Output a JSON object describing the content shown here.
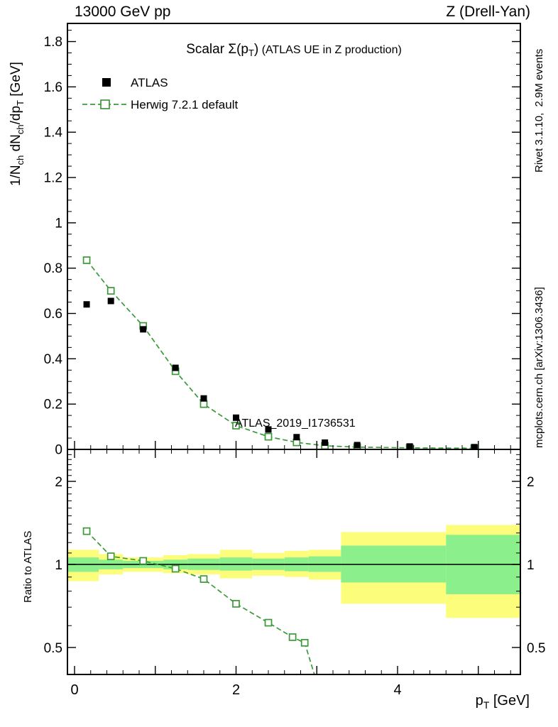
{
  "header": {
    "left": "13000 GeV pp",
    "right": "Z (Drell-Yan)"
  },
  "side_notes": {
    "top": "Rivet 3.1.10,  2.9M events",
    "bottom": "mcplots.cern.ch [arXiv:1306.3436]"
  },
  "watermark": "ATLAS_2019_I1736531",
  "title": {
    "p1": "Scalar Σ(p",
    "sub": "T",
    "p2": ")",
    "p3": " (ATLAS UE in Z production)"
  },
  "labels": {
    "y_main": {
      "p1": "1/N",
      "s1": "ch",
      "p2": " dN",
      "s2": "ch",
      "p3": "/dp",
      "s3": "T",
      "p4": " [GeV]"
    },
    "y_ratio": "Ratio to ATLAS",
    "x": {
      "p1": "p",
      "s1": "T",
      "p2": " [GeV]"
    }
  },
  "legend": {
    "items": [
      {
        "label": "ATLAS",
        "marker": "filled-square",
        "color": "#000000"
      },
      {
        "label": "Herwig 7.2.1 default",
        "marker": "open-square-dashed-line",
        "color": "#3c9939"
      }
    ]
  },
  "colors": {
    "herwig_green": "#3c9939",
    "atlas_black": "#000000",
    "band_yellow": "#fdfd7c",
    "band_green": "#8bf08b",
    "gray_text": "#8c8c8c",
    "watermark_gray": "#b8b8b8"
  },
  "axes": {
    "main": {
      "ylim": [
        0,
        1.88
      ],
      "xlim": [
        -0.09,
        5.52
      ],
      "yticks": [
        {
          "v": 0,
          "t": "0"
        },
        {
          "v": 0.2,
          "t": "0.2"
        },
        {
          "v": 0.4,
          "t": "0.4"
        },
        {
          "v": 0.6,
          "t": "0.6"
        },
        {
          "v": 0.8,
          "t": "0.8"
        },
        {
          "v": 1,
          "t": "1"
        },
        {
          "v": 1.2,
          "t": "1.2"
        },
        {
          "v": 1.4,
          "t": "1.4"
        },
        {
          "v": 1.6,
          "t": "1.6"
        },
        {
          "v": 1.8,
          "t": "1.8"
        }
      ],
      "xticks_major": [
        0,
        1,
        2,
        3,
        4,
        5
      ],
      "xminor_step": 0.2,
      "yminor_step": 0.05
    },
    "ratio": {
      "yscale": "log",
      "ylim": [
        0.4,
        2.61
      ],
      "yticks": [
        {
          "v": 0.5,
          "t": "0.5"
        },
        {
          "v": 1,
          "t": "1"
        },
        {
          "v": 2,
          "t": "2"
        }
      ],
      "yminor": [
        0.4,
        0.6,
        0.7,
        0.8,
        0.9,
        1.1,
        1.2,
        1.3,
        1.4,
        1.5,
        1.6,
        1.7,
        1.8,
        1.9,
        2.1,
        2.2,
        2.3,
        2.4,
        2.5,
        2.6
      ],
      "xtick_labels": [
        {
          "v": 0,
          "t": "0"
        },
        {
          "v": 2,
          "t": "2"
        },
        {
          "v": 4,
          "t": "4"
        }
      ]
    }
  },
  "chart_data": [
    {
      "type": "scatter",
      "title": "Scalar Σ(pT) (ATLAS UE in Z production)",
      "xlabel": "pT [GeV]",
      "ylabel": "1/Nch dNch/dpT [GeV]",
      "xlim": [
        -0.09,
        5.52
      ],
      "ylim": [
        0,
        1.88
      ],
      "legend_position": "upper-left-inside",
      "grid": false,
      "x": [
        0.15,
        0.45,
        0.85,
        1.25,
        1.6,
        2.0,
        2.4,
        2.75,
        3.1,
        3.5,
        4.15,
        4.95
      ],
      "series": [
        {
          "name": "ATLAS",
          "marker": "filled-square",
          "color": "#000000",
          "values": [
            0.64,
            0.655,
            0.53,
            0.36,
            0.225,
            0.14,
            0.088,
            0.054,
            0.03,
            0.019,
            0.013,
            0.01
          ]
        },
        {
          "name": "Herwig 7.2.1 default",
          "marker": "open-square",
          "line": "dashed",
          "color": "#3c9939",
          "values": [
            0.835,
            0.7,
            0.545,
            0.345,
            0.2,
            0.105,
            0.056,
            0.031,
            0.016,
            0.01,
            0.007,
            0.005
          ]
        }
      ]
    },
    {
      "type": "ratio-line",
      "name": "Herwig 7.2.1 default / ATLAS",
      "ylabel": "Ratio to ATLAS",
      "yscale": "log",
      "ylim": [
        0.4,
        2.61
      ],
      "x": [
        0.15,
        0.45,
        0.85,
        1.25,
        1.6,
        2.0,
        2.4,
        2.7,
        2.85,
        3.1
      ],
      "values": [
        1.32,
        1.07,
        1.03,
        0.965,
        0.885,
        0.72,
        0.615,
        0.545,
        0.52,
        0.3
      ],
      "bands": [
        {
          "x": [
            -0.09,
            0.3
          ],
          "yellow": [
            0.87,
            1.13
          ],
          "green": [
            0.94,
            1.06
          ]
        },
        {
          "x": [
            0.3,
            0.6
          ],
          "yellow": [
            0.92,
            1.09
          ],
          "green": [
            0.96,
            1.04
          ]
        },
        {
          "x": [
            0.6,
            1.1
          ],
          "yellow": [
            0.94,
            1.06
          ],
          "green": [
            0.97,
            1.03
          ]
        },
        {
          "x": [
            1.1,
            1.4
          ],
          "yellow": [
            0.93,
            1.08
          ],
          "green": [
            0.96,
            1.04
          ]
        },
        {
          "x": [
            1.4,
            1.8
          ],
          "yellow": [
            0.92,
            1.09
          ],
          "green": [
            0.955,
            1.05
          ]
        },
        {
          "x": [
            1.8,
            2.2
          ],
          "yellow": [
            0.89,
            1.13
          ],
          "green": [
            0.95,
            1.06
          ]
        },
        {
          "x": [
            2.2,
            2.6
          ],
          "yellow": [
            0.91,
            1.1
          ],
          "green": [
            0.955,
            1.05
          ]
        },
        {
          "x": [
            2.6,
            2.9
          ],
          "yellow": [
            0.9,
            1.12
          ],
          "green": [
            0.945,
            1.06
          ]
        },
        {
          "x": [
            2.9,
            3.3
          ],
          "yellow": [
            0.88,
            1.13
          ],
          "green": [
            0.94,
            1.07
          ]
        },
        {
          "x": [
            3.3,
            4.6
          ],
          "yellow": [
            0.72,
            1.31
          ],
          "green": [
            0.86,
            1.17
          ]
        },
        {
          "x": [
            4.6,
            5.52
          ],
          "yellow": [
            0.64,
            1.39
          ],
          "green": [
            0.78,
            1.28
          ]
        }
      ]
    }
  ]
}
